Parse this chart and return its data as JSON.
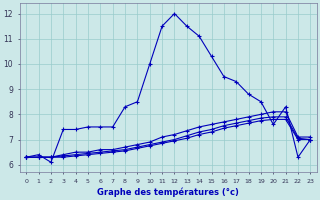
{
  "xlabel": "Graphe des températures (°c)",
  "bg_color": "#cce8e8",
  "grid_color": "#99cccc",
  "line_color": "#0000bb",
  "x_ticks": [
    0,
    1,
    2,
    3,
    4,
    5,
    6,
    7,
    8,
    9,
    10,
    11,
    12,
    13,
    14,
    15,
    16,
    17,
    18,
    19,
    20,
    21,
    22,
    23
  ],
  "ylim": [
    5.7,
    12.4
  ],
  "xlim": [
    -0.5,
    23.5
  ],
  "yticks": [
    6,
    7,
    8,
    9,
    10,
    11,
    12
  ],
  "series1": [
    6.3,
    6.4,
    6.1,
    7.4,
    7.4,
    7.5,
    7.5,
    7.5,
    8.3,
    8.5,
    10.0,
    11.5,
    12.0,
    11.5,
    11.1,
    10.3,
    9.5,
    9.3,
    8.8,
    8.5,
    7.6,
    8.3,
    6.3,
    7.0
  ],
  "series2": [
    6.3,
    6.3,
    6.3,
    6.4,
    6.5,
    6.5,
    6.6,
    6.6,
    6.7,
    6.8,
    6.9,
    7.1,
    7.2,
    7.35,
    7.5,
    7.6,
    7.7,
    7.8,
    7.9,
    8.0,
    8.1,
    8.1,
    7.1,
    7.1
  ],
  "series3": [
    6.3,
    6.3,
    6.3,
    6.35,
    6.4,
    6.45,
    6.5,
    6.55,
    6.6,
    6.7,
    6.8,
    6.9,
    7.0,
    7.15,
    7.3,
    7.4,
    7.55,
    7.65,
    7.75,
    7.85,
    7.9,
    7.9,
    7.05,
    7.0
  ],
  "series4": [
    6.3,
    6.3,
    6.3,
    6.3,
    6.35,
    6.4,
    6.45,
    6.5,
    6.55,
    6.65,
    6.75,
    6.85,
    6.95,
    7.05,
    7.2,
    7.3,
    7.45,
    7.55,
    7.65,
    7.75,
    7.8,
    7.8,
    7.0,
    7.0
  ]
}
